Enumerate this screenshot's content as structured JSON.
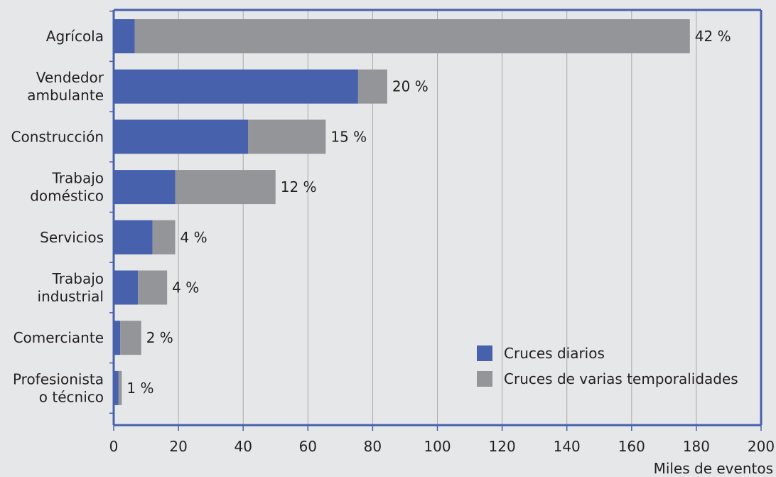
{
  "chart_data": {
    "type": "bar",
    "orientation": "horizontal",
    "stacked": true,
    "categories": [
      [
        "Agrícola"
      ],
      [
        "Vendedor",
        "ambulante"
      ],
      [
        "Construcción"
      ],
      [
        "Trabajo",
        "doméstico"
      ],
      [
        "Servicios"
      ],
      [
        "Trabajo",
        "industrial"
      ],
      [
        "Comerciante"
      ],
      [
        "Profesionista",
        "o técnico"
      ]
    ],
    "series": [
      {
        "name": "Cruces diarios",
        "color": "#4761ad",
        "values": [
          6.5,
          75.5,
          41.5,
          19,
          12,
          7.5,
          2,
          1.5
        ]
      },
      {
        "name": "Cruces de varias temporalidades",
        "color": "#939598",
        "values": [
          171.5,
          9,
          24,
          31,
          7,
          9,
          6.5,
          1
        ]
      }
    ],
    "data_labels": [
      "42 %",
      "20 %",
      "15 %",
      "12 %",
      "4 %",
      "4 %",
      "2 %",
      "1 %"
    ],
    "xlim": [
      0,
      200
    ],
    "xticks": [
      0,
      20,
      40,
      60,
      80,
      100,
      120,
      140,
      160,
      180,
      200
    ],
    "xlabel": "Miles de eventos",
    "grid": "vertical",
    "legend_position": "bottom-right",
    "colors": {
      "background": "#e6e7e8",
      "frame": "#4761ad",
      "gridline": "#a7a9ac"
    }
  }
}
